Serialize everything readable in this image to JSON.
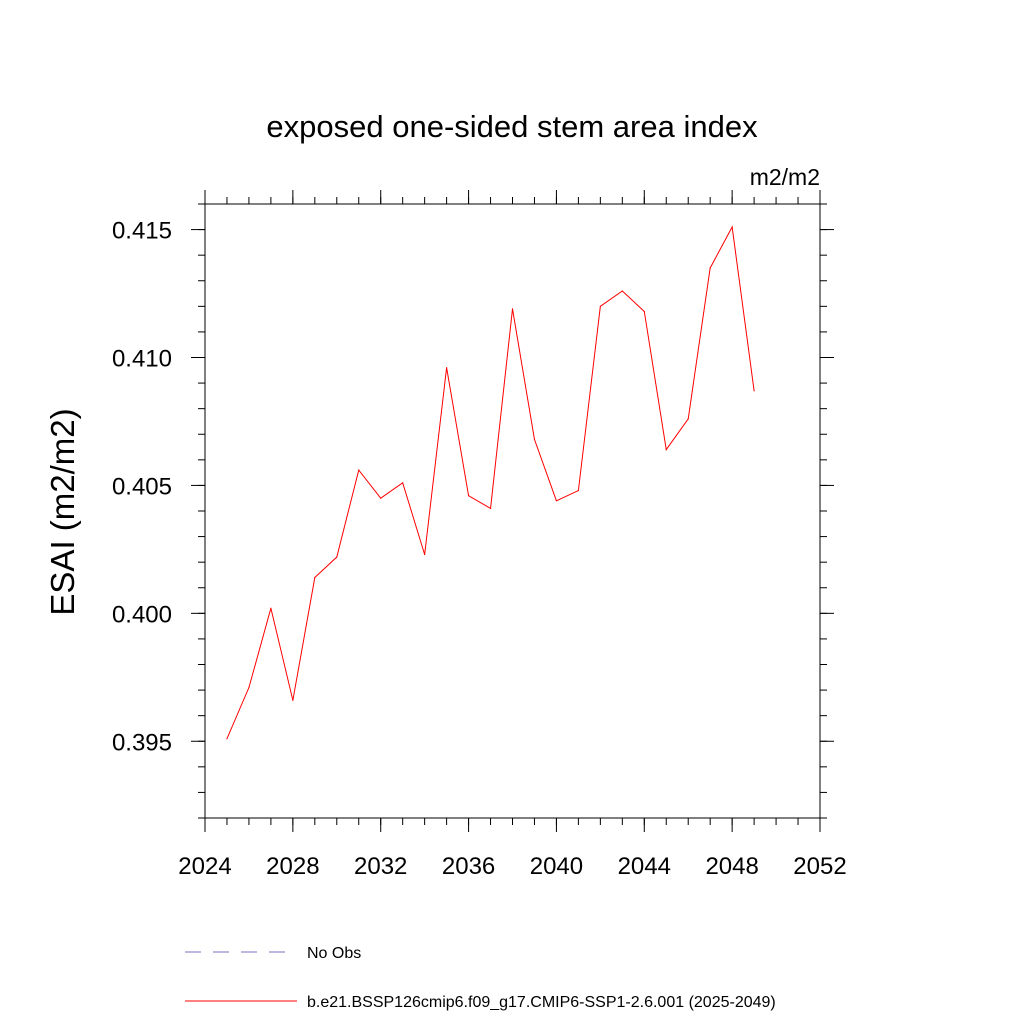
{
  "chart_data": {
    "type": "line",
    "title": "exposed one-sided stem area index",
    "units_label": "m2/m2",
    "ylabel": "ESAI  (m2/m2)",
    "xlabel": "",
    "xlim": [
      2024,
      2052
    ],
    "ylim": [
      0.392,
      0.416
    ],
    "x_ticks": [
      2024,
      2028,
      2032,
      2036,
      2040,
      2044,
      2048,
      2052
    ],
    "x_tick_labels": [
      "2024",
      "2028",
      "2032",
      "2036",
      "2040",
      "2044",
      "2048",
      "2052"
    ],
    "x_minor_step": 1,
    "y_ticks": [
      0.395,
      0.4,
      0.405,
      0.41,
      0.415
    ],
    "y_tick_labels": [
      "0.395",
      "0.400",
      "0.405",
      "0.410",
      "0.415"
    ],
    "y_minor_step": 0.001,
    "grid": false,
    "legend_placement": "bottom",
    "legend": [
      {
        "label": "No Obs",
        "style": "dashed",
        "color": "#7b6fc4"
      },
      {
        "label": "b.e21.BSSP126cmip6.f09_g17.CMIP6-SSP1-2.6.001 (2025-2049)",
        "style": "solid",
        "color": "#ff0000"
      }
    ],
    "series": [
      {
        "name": "b.e21.BSSP126cmip6.f09_g17.CMIP6-SSP1-2.6.001 (2025-2049)",
        "color": "#ff0000",
        "x": [
          2025,
          2026,
          2027,
          2028,
          2029,
          2030,
          2031,
          2032,
          2033,
          2034,
          2035,
          2036,
          2037,
          2038,
          2039,
          2040,
          2041,
          2042,
          2043,
          2044,
          2045,
          2046,
          2047,
          2048,
          2049
        ],
        "values": [
          0.3951,
          0.3971,
          0.4002,
          0.3966,
          0.4014,
          0.4022,
          0.4056,
          0.4045,
          0.4051,
          0.4023,
          0.4096,
          0.4046,
          0.4041,
          0.4119,
          0.4068,
          0.4044,
          0.4048,
          0.412,
          0.4126,
          0.4118,
          0.4064,
          0.4076,
          0.4135,
          0.4151,
          0.4087
        ]
      }
    ]
  }
}
